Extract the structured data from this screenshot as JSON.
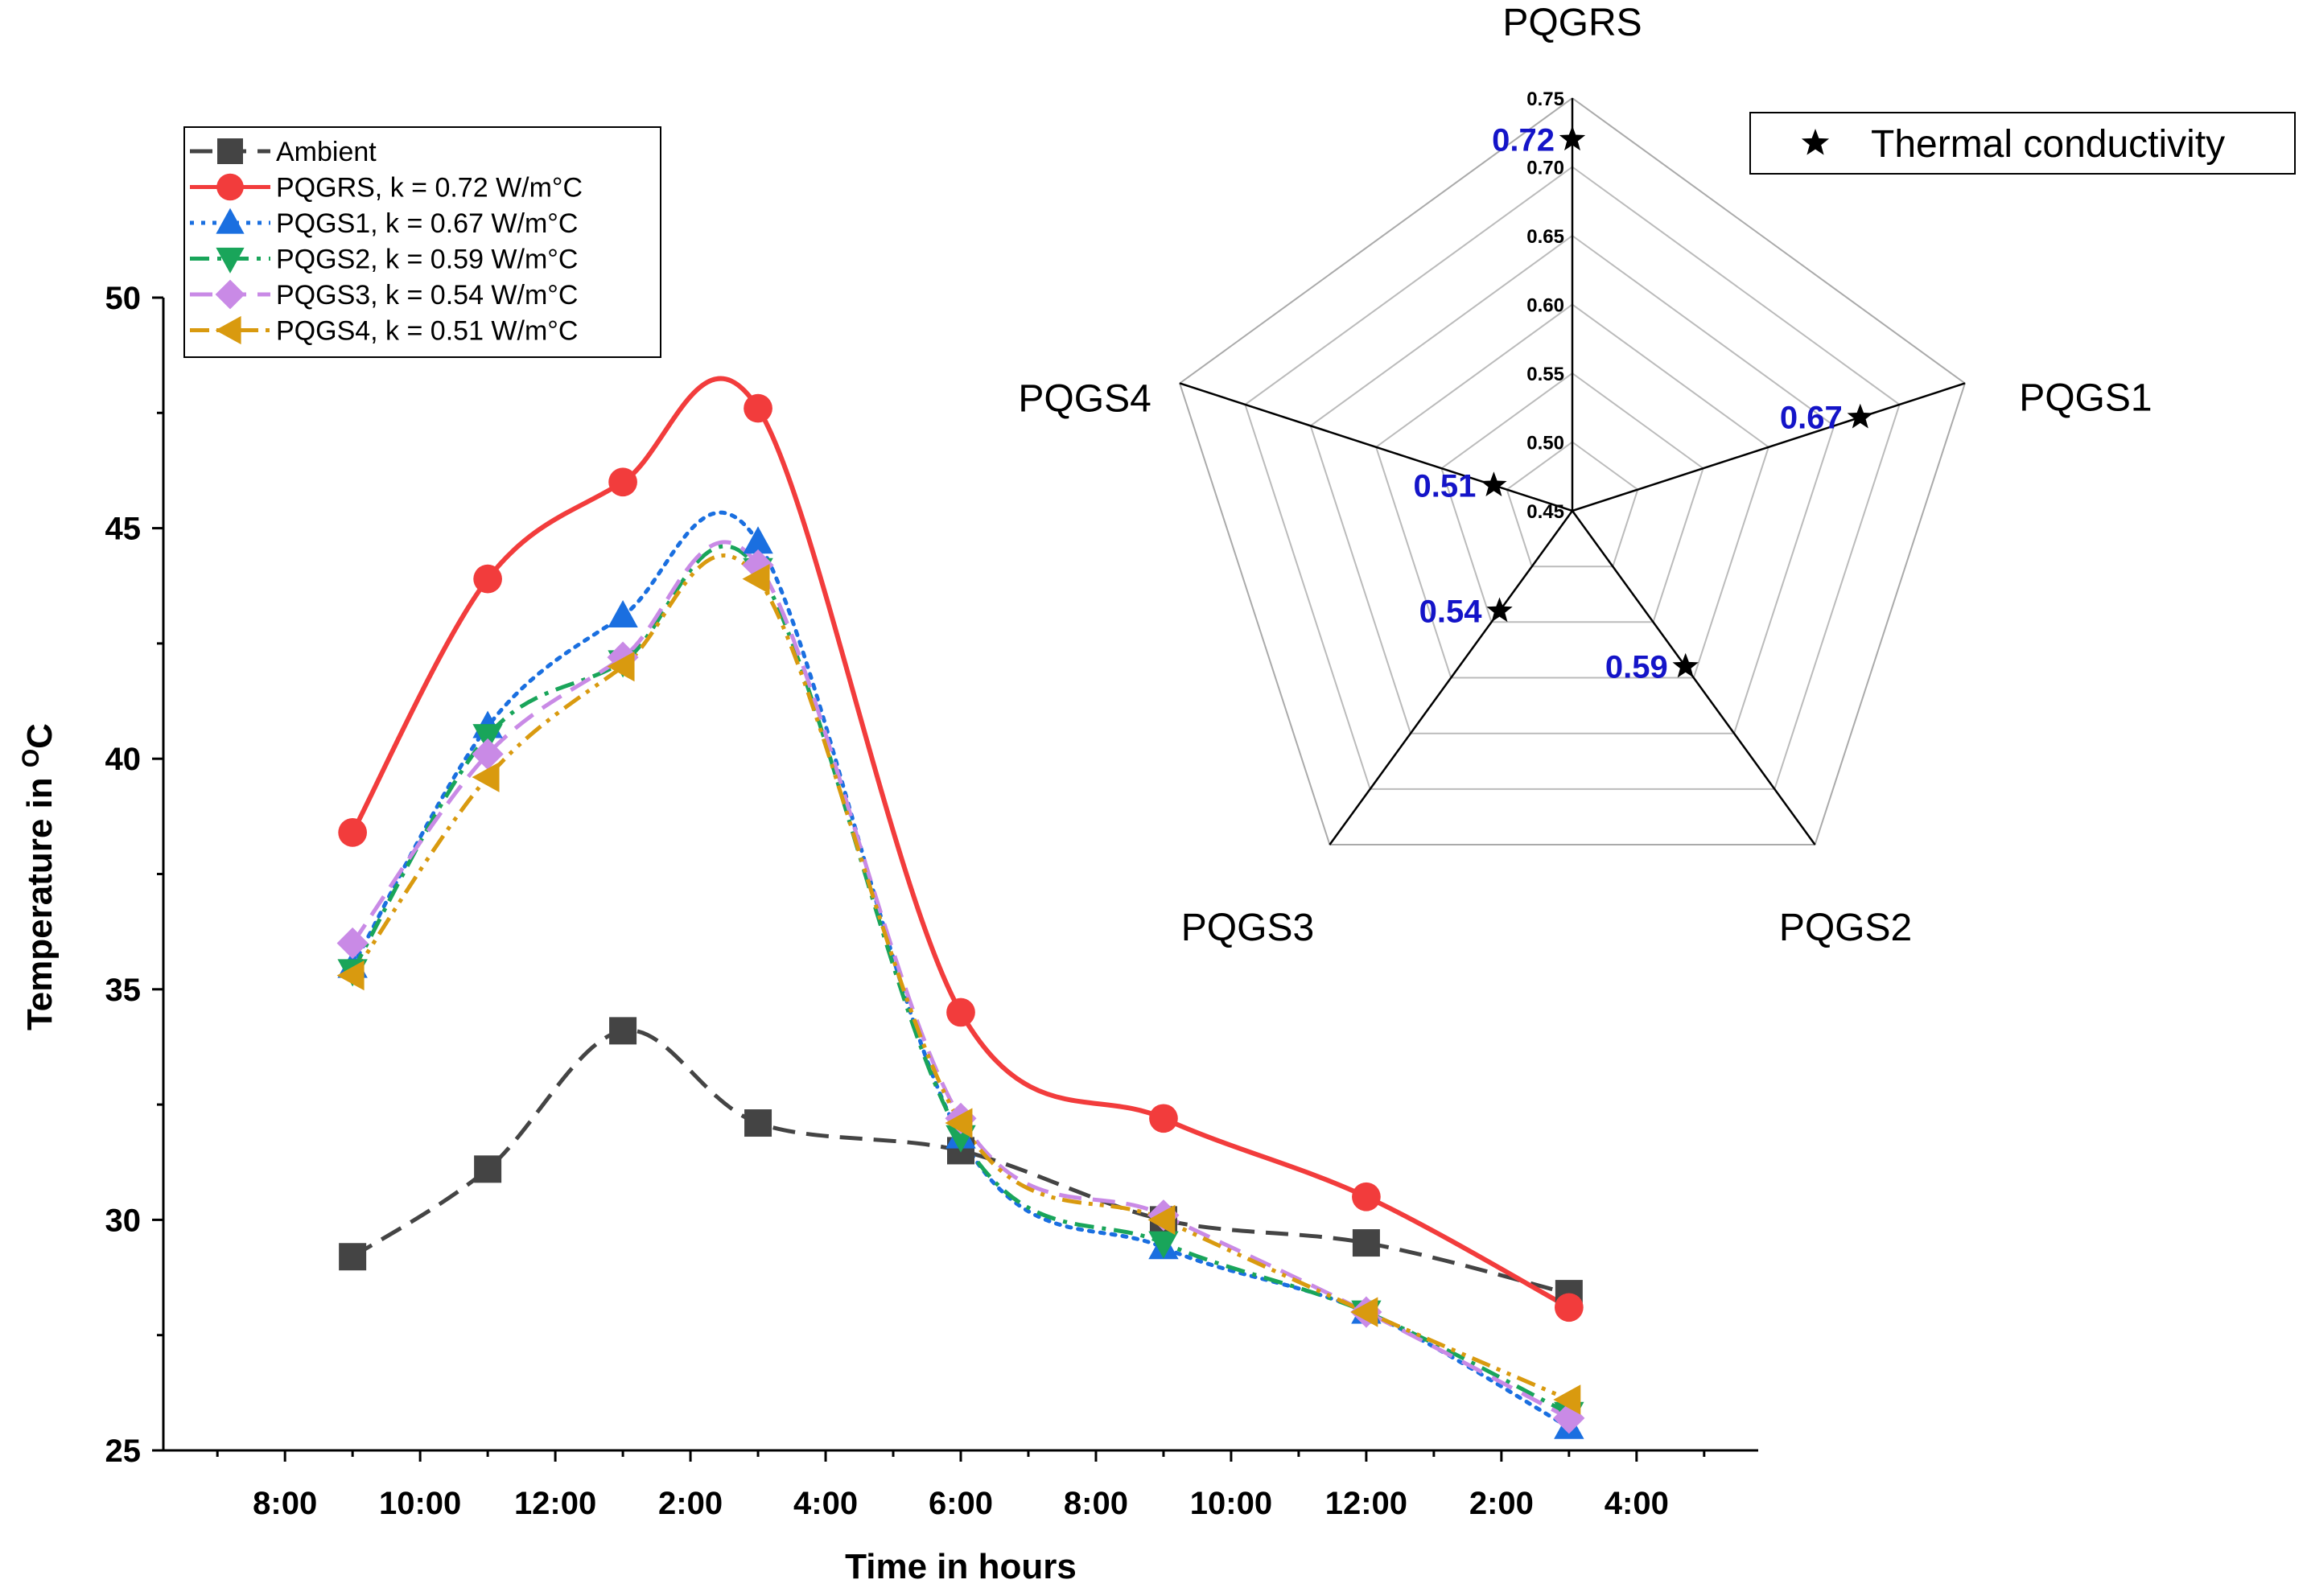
{
  "chart_data": [
    {
      "type": "line",
      "xlabel": "Time in hours",
      "ylabel": "Temperature in ",
      "ylabel_superscript": "O",
      "ylabel_unit": "C",
      "x_tick_labels": [
        "8:00",
        "10:00",
        "12:00",
        "2:00",
        "4:00",
        "6:00",
        "8:00",
        "10:00",
        "12:00",
        "2:00",
        "4:00"
      ],
      "x_tick_hours": [
        8,
        10,
        12,
        14,
        16,
        18,
        20,
        22,
        24,
        26,
        28
      ],
      "xlim": [
        6.2,
        29.8
      ],
      "ylim": [
        25,
        50
      ],
      "y_ticks": [
        "25",
        "30",
        "35",
        "40",
        "45",
        "50"
      ],
      "y_tick_values": [
        25,
        30,
        35,
        40,
        45,
        50
      ],
      "x": [
        9,
        11,
        13,
        15,
        18,
        21,
        24,
        27
      ],
      "series": [
        {
          "name": "Ambient",
          "color": "#444444",
          "marker": "square",
          "dash": "dash",
          "values": [
            29.2,
            31.1,
            34.1,
            32.1,
            31.5,
            30.0,
            29.5,
            28.4
          ]
        },
        {
          "name": "PQGRS, k = 0.72 W/m°C",
          "color": "#f23c3c",
          "marker": "circle",
          "dash": "solid",
          "values": [
            38.4,
            43.9,
            46.0,
            47.6,
            34.5,
            32.2,
            30.5,
            28.1
          ]
        },
        {
          "name": "PQGS1, k = 0.67 W/m°C",
          "color": "#1a6fe0",
          "marker": "triangle-up",
          "dash": "dot",
          "values": [
            35.5,
            40.7,
            43.1,
            44.7,
            31.8,
            29.4,
            28.0,
            25.5
          ]
        },
        {
          "name": "PQGS2, k = 0.59 W/m°C",
          "color": "#19a55a",
          "marker": "triangle-down",
          "dash": "dashdot",
          "values": [
            35.4,
            40.5,
            42.1,
            44.1,
            31.8,
            29.5,
            28.0,
            25.8
          ]
        },
        {
          "name": "PQGS3, k = 0.54 W/m°C",
          "color": "#c98ae6",
          "marker": "diamond",
          "dash": "dash",
          "values": [
            36.0,
            40.1,
            42.2,
            44.2,
            32.2,
            30.1,
            28.0,
            25.7
          ]
        },
        {
          "name": "PQGS4, k = 0.51 W/m°C",
          "color": "#d99a0f",
          "marker": "triangle-left",
          "dash": "dashdotdot",
          "values": [
            35.3,
            39.6,
            42.0,
            43.9,
            32.1,
            30.0,
            28.0,
            26.1
          ]
        }
      ],
      "legend_position": "top-left"
    },
    {
      "type": "radar",
      "axes": [
        "PQGRS",
        "PQGS1",
        "PQGS2",
        "PQGS3",
        "PQGS4"
      ],
      "values": [
        0.72,
        0.67,
        0.59,
        0.54,
        0.51
      ],
      "value_labels": [
        "0.72",
        "0.67",
        "0.59",
        "0.54",
        "0.51"
      ],
      "range": [
        0.45,
        0.75
      ],
      "ticks": [
        "0.45",
        "0.50",
        "0.55",
        "0.60",
        "0.65",
        "0.70",
        "0.75"
      ],
      "tick_values": [
        0.45,
        0.5,
        0.55,
        0.6,
        0.65,
        0.7,
        0.75
      ],
      "legend": "Thermal conductivity",
      "marker": "star",
      "value_color": "#1414c8",
      "legend_position": "top-right"
    }
  ]
}
